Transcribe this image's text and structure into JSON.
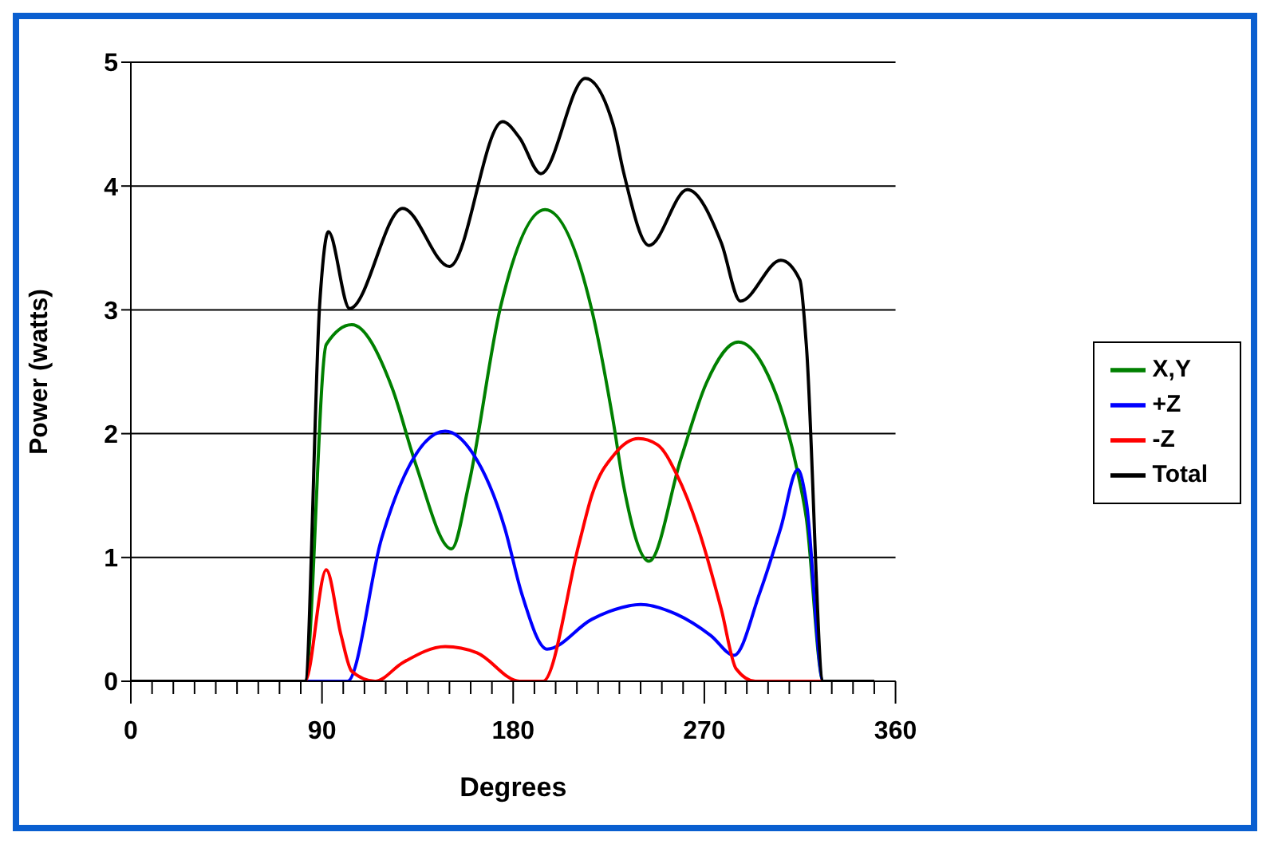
{
  "chart_data": {
    "type": "line",
    "xlabel": "Degrees",
    "ylabel": "Power (watts)",
    "xlim": [
      0,
      360
    ],
    "xticks": [
      0,
      {
        "value": 10,
        "label": null
      },
      {
        "value": 20,
        "label": null
      },
      {
        "value": 30,
        "label": null
      },
      {
        "value": 40,
        "label": null
      },
      {
        "value": 50,
        "label": null
      },
      {
        "value": 60,
        "label": null
      },
      {
        "value": 70,
        "label": null
      },
      {
        "value": 80,
        "label": null
      },
      90,
      {
        "value": 100,
        "label": null
      },
      {
        "value": 110,
        "label": null
      },
      {
        "value": 120,
        "label": null
      },
      {
        "value": 130,
        "label": null
      },
      {
        "value": 140,
        "label": null
      },
      {
        "value": 150,
        "label": null
      },
      {
        "value": 160,
        "label": null
      },
      {
        "value": 170,
        "label": null
      },
      180,
      {
        "value": 190,
        "label": null
      },
      {
        "value": 200,
        "label": null
      },
      {
        "value": 210,
        "label": null
      },
      {
        "value": 220,
        "label": null
      },
      {
        "value": 230,
        "label": null
      },
      {
        "value": 240,
        "label": null
      },
      {
        "value": 250,
        "label": null
      },
      {
        "value": 260,
        "label": null
      },
      270,
      {
        "value": 280,
        "label": null
      },
      {
        "value": 290,
        "label": null
      },
      {
        "value": 300,
        "label": null
      },
      {
        "value": 310,
        "label": null
      },
      {
        "value": 320,
        "label": null
      },
      {
        "value": 330,
        "label": null
      },
      {
        "value": 340,
        "label": null
      },
      {
        "value": 350,
        "label": null
      },
      360
    ],
    "ylim": [
      0,
      5
    ],
    "yticks": [
      0,
      1,
      2,
      3,
      4,
      5
    ],
    "grid": "y",
    "legend": "right",
    "marker": "none",
    "line_style": "solid",
    "series": [
      {
        "name": "X,Y",
        "color": "#008000",
        "x": [
          0,
          82,
          92,
          104,
          123,
          134,
          151,
          159,
          174,
          195,
          217,
          227,
          232,
          244,
          259,
          271,
          286,
          298,
          313,
          318,
          326,
          350
        ],
        "values": [
          0,
          0,
          2.72,
          2.88,
          2.37,
          1.76,
          1.07,
          1.58,
          3.02,
          3.81,
          3.0,
          2.11,
          1.58,
          0.97,
          1.8,
          2.41,
          2.74,
          2.54,
          1.76,
          1.32,
          0,
          0
        ]
      },
      {
        "name": "+Z",
        "color": "#0000ff",
        "x": [
          0,
          102,
          118,
          128,
          148,
          161,
          176,
          184,
          196,
          217,
          228,
          240,
          257,
          273,
          284,
          296,
          306,
          314,
          318,
          326,
          350
        ],
        "values": [
          0,
          0,
          1.15,
          1.63,
          2.02,
          1.84,
          1.24,
          0.71,
          0.26,
          0.5,
          0.58,
          0.62,
          0.54,
          0.37,
          0.21,
          0.71,
          1.24,
          1.71,
          1.45,
          0,
          0
        ]
      },
      {
        "name": "-Z",
        "color": "#ff0000",
        "x": [
          0,
          82,
          92,
          99,
          104,
          115,
          128,
          148,
          163,
          183,
          194,
          211,
          217,
          228,
          239,
          248,
          257,
          267,
          278,
          285,
          294,
          350
        ],
        "values": [
          0,
          0,
          0.9,
          0.37,
          0.08,
          0,
          0.15,
          0.28,
          0.23,
          0,
          0,
          1.11,
          1.5,
          1.84,
          1.96,
          1.91,
          1.67,
          1.24,
          0.58,
          0.1,
          0,
          0
        ]
      },
      {
        "name": "Total",
        "color": "#000000",
        "x": [
          0,
          82,
          89,
          93,
          103,
          128,
          150,
          175,
          183,
          193,
          214,
          227,
          232,
          244,
          262,
          278,
          287,
          306,
          315,
          318,
          326,
          350
        ],
        "values": [
          0,
          0,
          3.07,
          3.63,
          3.01,
          3.82,
          3.35,
          4.52,
          4.39,
          4.1,
          4.87,
          4.5,
          4.11,
          3.52,
          3.97,
          3.54,
          3.07,
          3.4,
          3.24,
          2.72,
          0,
          0
        ]
      }
    ]
  }
}
